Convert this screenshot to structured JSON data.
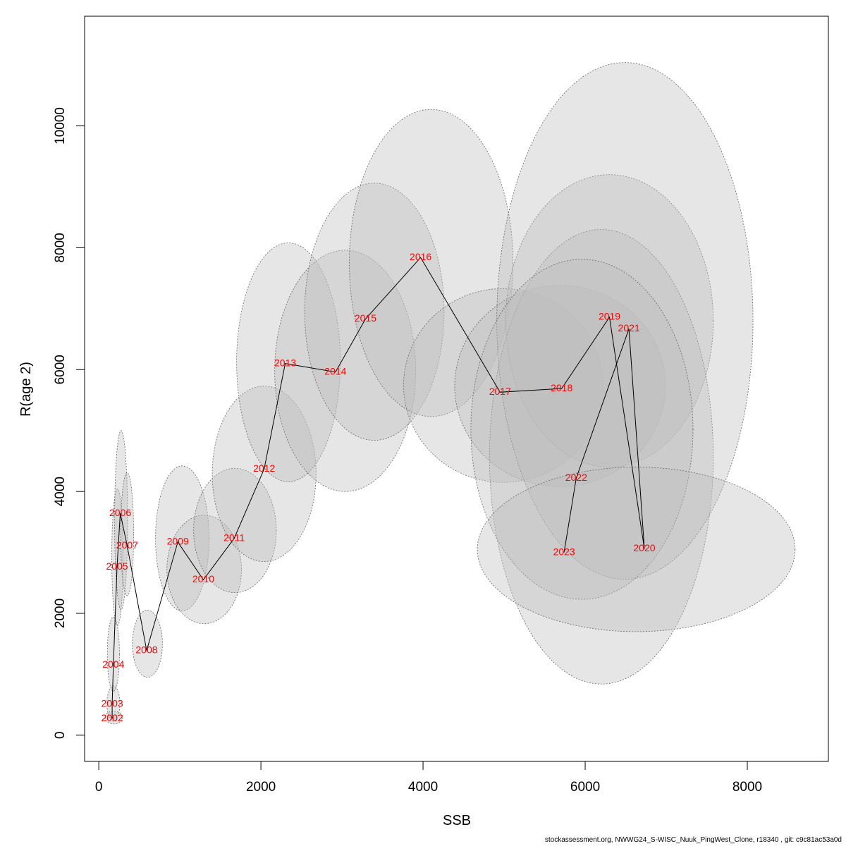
{
  "chart_data": {
    "type": "scatter",
    "title": "",
    "xlabel": "SSB",
    "ylabel": "R(age 2)",
    "xlim": [
      -175,
      9000
    ],
    "ylim": [
      -430,
      11800
    ],
    "xticks": [
      0,
      2000,
      4000,
      6000,
      8000
    ],
    "yticks": [
      0,
      2000,
      4000,
      6000,
      8000,
      10000
    ],
    "xtick_labels": [
      "0",
      "2000",
      "4000",
      "6000",
      "8000"
    ],
    "ytick_labels": [
      "0",
      "2000",
      "4000",
      "6000",
      "8000",
      "10000"
    ],
    "grid": false,
    "legend": "none",
    "colors": {
      "trajectory": "#000000",
      "year_label": "#ff0000",
      "ellipse_fill": "#bebebe",
      "ellipse_stroke": "#666666"
    },
    "points": [
      {
        "year": "2002",
        "ssb": 165,
        "r": 270,
        "ell": {
          "cx": 185,
          "cy": 290,
          "rx": 110,
          "ry": 105,
          "rot": 0
        }
      },
      {
        "year": "2003",
        "ssb": 165,
        "r": 510,
        "ell": {
          "cx": 180,
          "cy": 520,
          "rx": 80,
          "ry": 290,
          "rot": 0
        }
      },
      {
        "year": "2004",
        "ssb": 180,
        "r": 1150,
        "ell": {
          "cx": 180,
          "cy": 1330,
          "rx": 75,
          "ry": 610,
          "rot": 0
        }
      },
      {
        "year": "2005",
        "ssb": 225,
        "r": 2760,
        "ell": {
          "cx": 230,
          "cy": 2920,
          "rx": 70,
          "ry": 1120,
          "rot": 0
        }
      },
      {
        "year": "2006",
        "ssb": 265,
        "r": 3640,
        "ell": {
          "cx": 275,
          "cy": 3530,
          "rx": 80,
          "ry": 1470,
          "rot": 0
        }
      },
      {
        "year": "2007",
        "ssb": 350,
        "r": 3110,
        "ell": {
          "cx": 350,
          "cy": 3300,
          "rx": 80,
          "ry": 1010,
          "rot": 0
        }
      },
      {
        "year": "2008",
        "ssb": 590,
        "r": 1390,
        "ell": {
          "cx": 600,
          "cy": 1500,
          "rx": 185,
          "ry": 550,
          "rot": 0
        }
      },
      {
        "year": "2009",
        "ssb": 975,
        "r": 3170,
        "ell": {
          "cx": 1030,
          "cy": 3230,
          "rx": 330,
          "ry": 1190,
          "rot": 0
        }
      },
      {
        "year": "2010",
        "ssb": 1290,
        "r": 2550,
        "ell": {
          "cx": 1300,
          "cy": 2720,
          "rx": 460,
          "ry": 890,
          "rot": 0
        }
      },
      {
        "year": "2011",
        "ssb": 1670,
        "r": 3230,
        "ell": {
          "cx": 1680,
          "cy": 3360,
          "rx": 510,
          "ry": 1020,
          "rot": 0
        }
      },
      {
        "year": "2012",
        "ssb": 2040,
        "r": 4370,
        "ell": {
          "cx": 2040,
          "cy": 4290,
          "rx": 640,
          "ry": 1440,
          "rot": 0
        }
      },
      {
        "year": "2013",
        "ssb": 2300,
        "r": 6100,
        "ell": {
          "cx": 2340,
          "cy": 6120,
          "rx": 640,
          "ry": 1960,
          "rot": 0
        }
      },
      {
        "year": "2014",
        "ssb": 2920,
        "r": 5960,
        "ell": {
          "cx": 3040,
          "cy": 5980,
          "rx": 870,
          "ry": 1980,
          "rot": 0
        }
      },
      {
        "year": "2015",
        "ssb": 3290,
        "r": 6830,
        "ell": {
          "cx": 3400,
          "cy": 6950,
          "rx": 860,
          "ry": 2110,
          "rot": 0
        }
      },
      {
        "year": "2016",
        "ssb": 3970,
        "r": 7840,
        "ell": {
          "cx": 4100,
          "cy": 7750,
          "rx": 1010,
          "ry": 2520,
          "rot": 0
        }
      },
      {
        "year": "2017",
        "ssb": 4950,
        "r": 5630,
        "ell": {
          "cx": 4990,
          "cy": 5740,
          "rx": 1230,
          "ry": 1590,
          "rot": 0
        }
      },
      {
        "year": "2018",
        "ssb": 5710,
        "r": 5690,
        "ell": {
          "cx": 5690,
          "cy": 5730,
          "rx": 1300,
          "ry": 1650,
          "rot": 0
        }
      },
      {
        "year": "2019",
        "ssb": 6300,
        "r": 6860,
        "ell": {
          "cx": 6300,
          "cy": 6800,
          "rx": 1280,
          "ry": 2400,
          "rot": 0
        }
      },
      {
        "year": "2020",
        "ssb": 6730,
        "r": 3060,
        "ell": {
          "cx": 6200,
          "cy": 4570,
          "rx": 1380,
          "ry": 3730,
          "rot": 0
        }
      },
      {
        "year": "2021",
        "ssb": 6540,
        "r": 6670,
        "ell": {
          "cx": 6490,
          "cy": 6800,
          "rx": 1580,
          "ry": 4240,
          "rot": 0
        }
      },
      {
        "year": "2022",
        "ssb": 5890,
        "r": 4220,
        "ell": {
          "cx": 5960,
          "cy": 5020,
          "rx": 1370,
          "ry": 2790,
          "rot": 0
        }
      },
      {
        "year": "2023",
        "ssb": 5740,
        "r": 3000,
        "ell": {
          "cx": 6630,
          "cy": 3050,
          "rx": 1960,
          "ry": 1350,
          "rot": 0
        }
      }
    ]
  },
  "footer": "stockassessment.org, NWWG24_S-WISC_Nuuk_PingWest_Clone, r18340 , git: c9c81ac53a0d"
}
